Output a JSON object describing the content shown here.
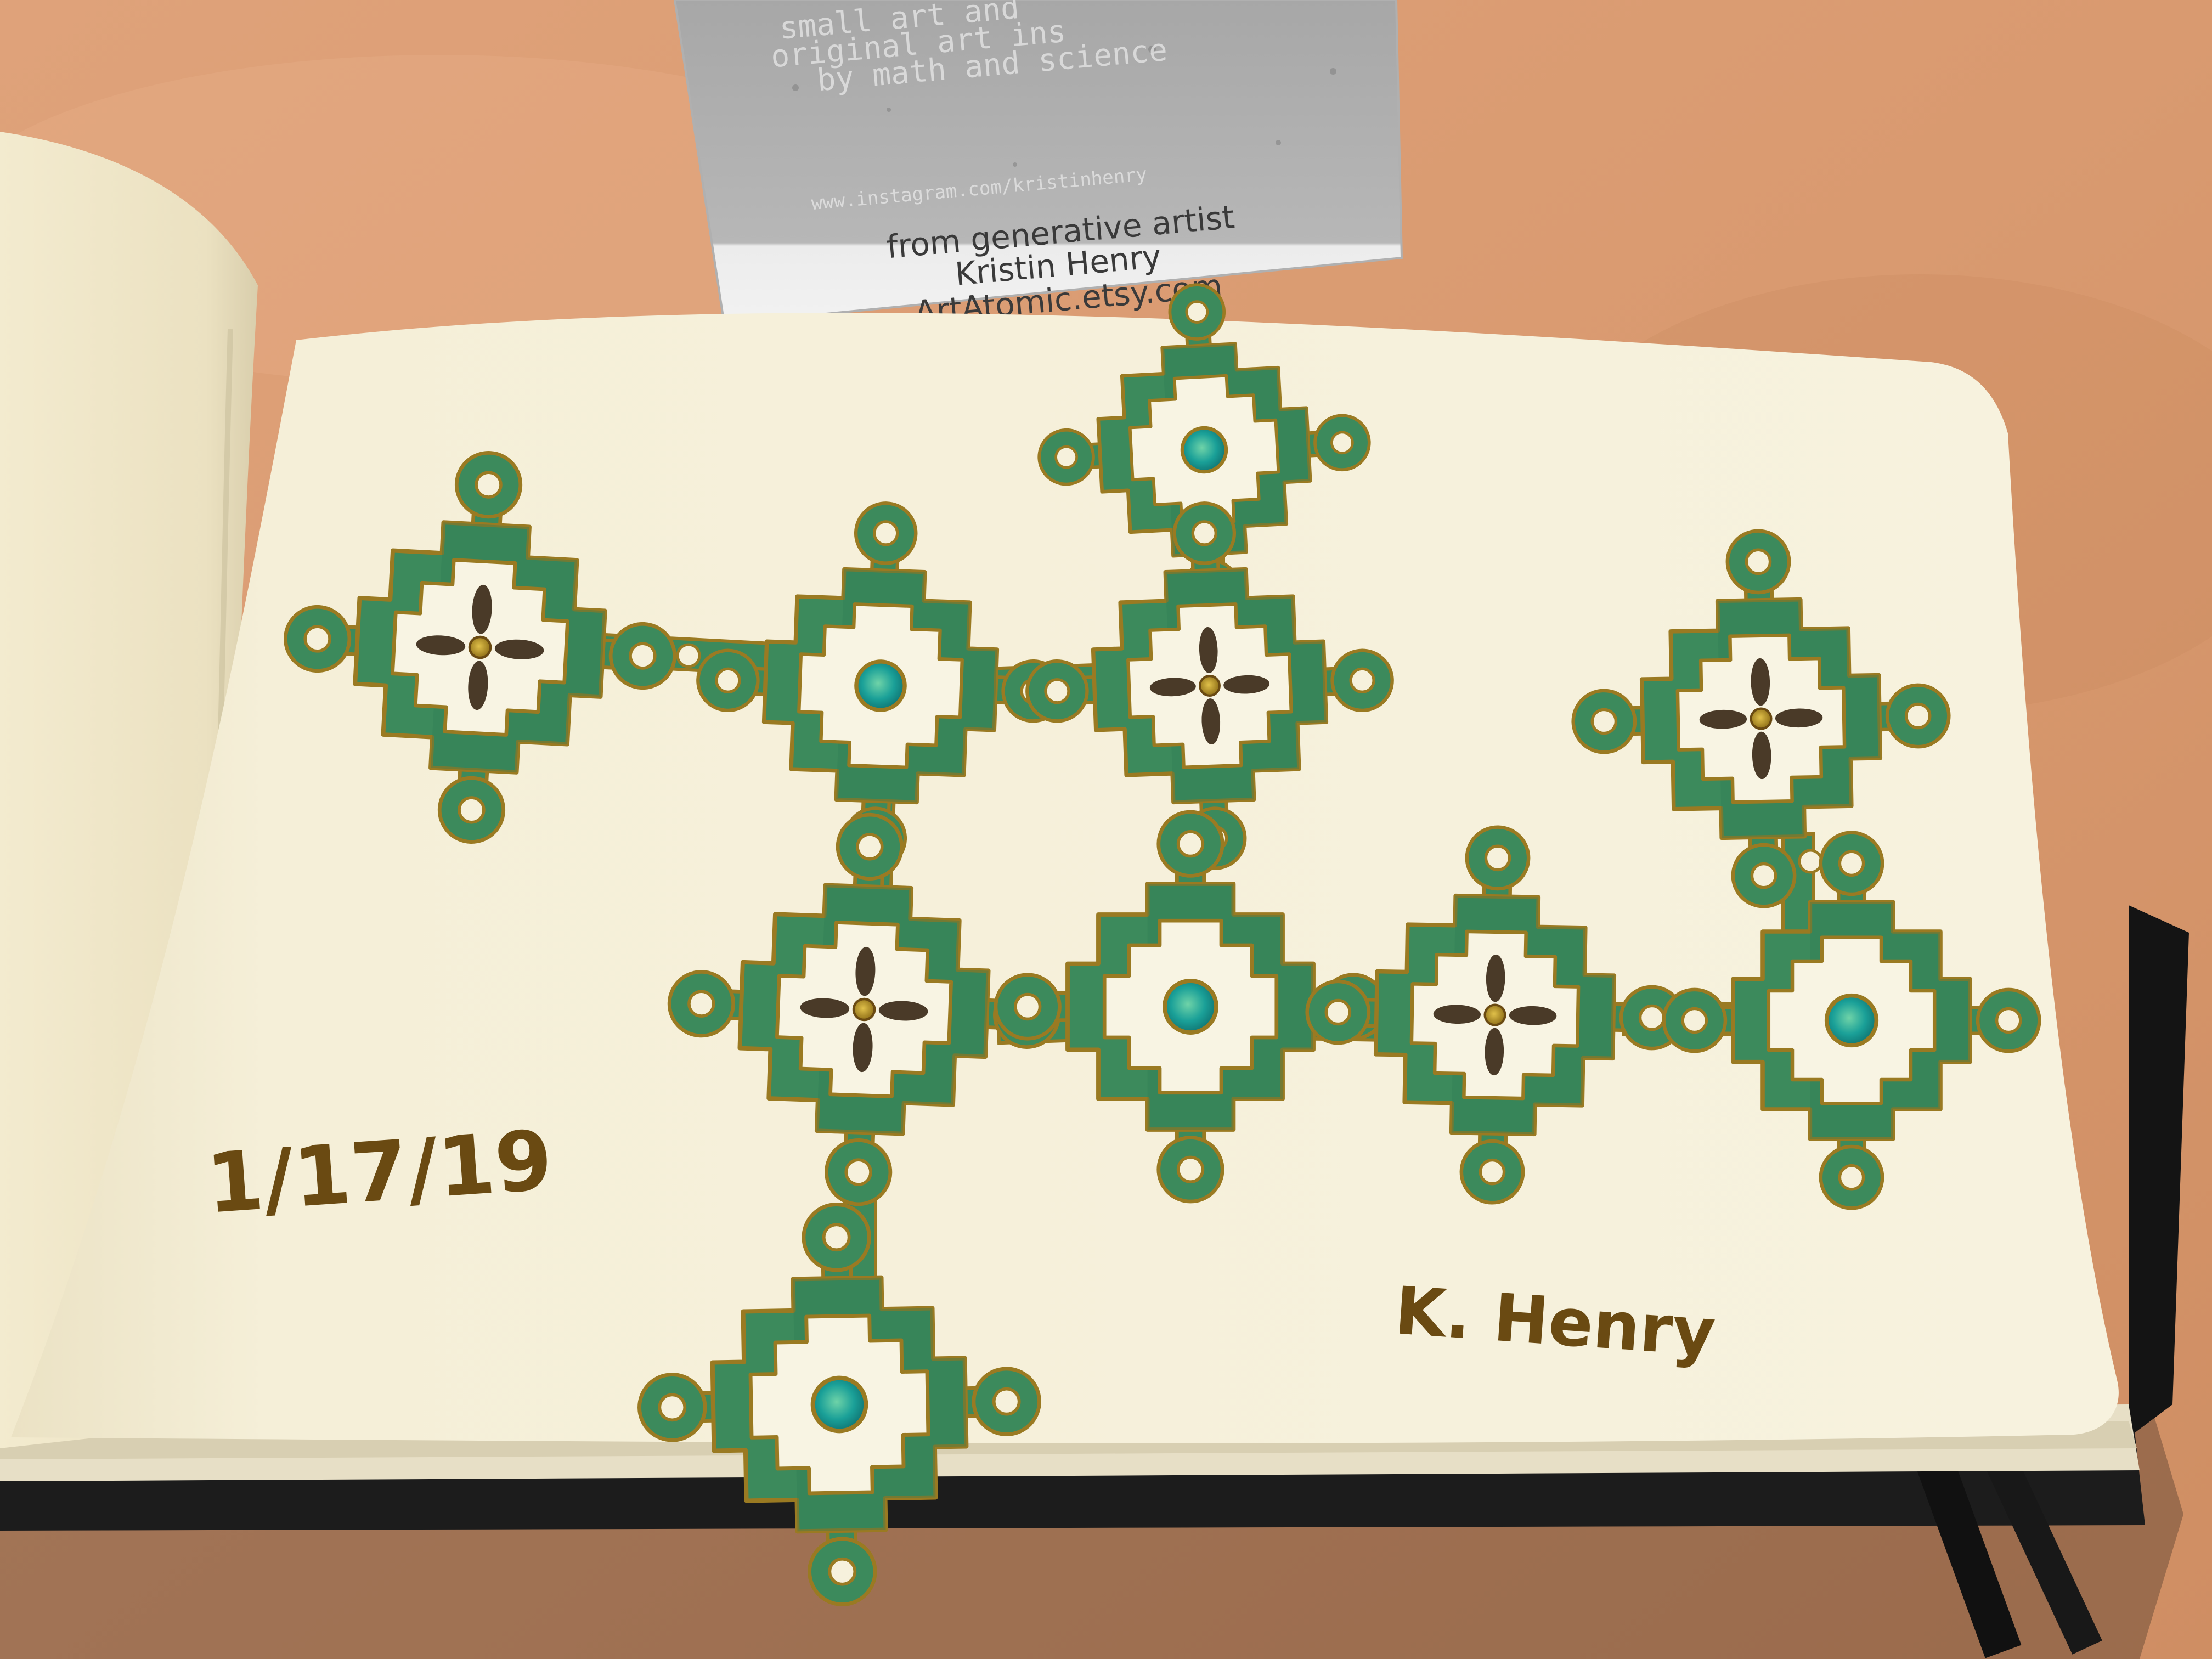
{
  "photo": {
    "subject": "sketchbook-with-ink-tile-pattern",
    "colors": {
      "table": "#d89a72",
      "table_light": "#e6ad86",
      "paper": "#f6f1dc",
      "paper_left": "#ece4c8",
      "ink_green": "#3c8a5c",
      "ink_green_dark": "#2e6e48",
      "gold_outline": "#9a7a22",
      "petal_brown": "#4a3a28",
      "center_teal": "#1aa098",
      "center_gold": "#b08a1a",
      "notebook_cover": "#1c1c1c"
    }
  },
  "card": {
    "faint_lines": [
      "small art and",
      "original art ins",
      "by math and science",
      "www.instagram.com/kristinhenry"
    ],
    "credit_line_1": "from generative artist",
    "credit_line_2": "Kristin Henry",
    "credit_line_3": "ArtAtomic.etsy.com"
  },
  "sketch": {
    "date": "1/17/19",
    "signature": "K. Henry",
    "tiles": [
      {
        "id": "tile-1",
        "center": "petals"
      },
      {
        "id": "tile-2",
        "center": "dot"
      },
      {
        "id": "tile-3",
        "center": "dot"
      },
      {
        "id": "tile-4",
        "center": "petals"
      },
      {
        "id": "tile-5",
        "center": "petals"
      },
      {
        "id": "tile-6",
        "center": "petals"
      },
      {
        "id": "tile-7",
        "center": "dot"
      },
      {
        "id": "tile-8",
        "center": "petals"
      },
      {
        "id": "tile-9",
        "center": "dot"
      },
      {
        "id": "tile-10",
        "center": "dot"
      }
    ]
  }
}
